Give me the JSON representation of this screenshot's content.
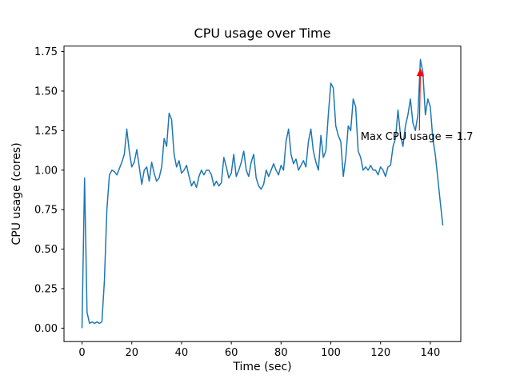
{
  "chart_data": {
    "type": "line",
    "title": "CPU usage over Time",
    "xlabel": "Time (sec)",
    "ylabel": "CPU usage (cores)",
    "line_color": "#1f77b4",
    "grid": false,
    "legend": "none",
    "xlim": [
      -7.25,
      152.25
    ],
    "ylim": [
      -0.085,
      1.785
    ],
    "xticks": [
      0,
      20,
      40,
      60,
      80,
      100,
      120,
      140
    ],
    "xticklabels": [
      "0",
      "20",
      "40",
      "60",
      "80",
      "100",
      "120",
      "140"
    ],
    "yticks": [
      0.0,
      0.25,
      0.5,
      0.75,
      1.0,
      1.25,
      1.5,
      1.75
    ],
    "yticklabels": [
      "0.00",
      "0.25",
      "0.50",
      "0.75",
      "1.00",
      "1.25",
      "1.50",
      "1.75"
    ],
    "x": [
      0,
      1,
      2,
      3,
      4,
      5,
      6,
      7,
      8,
      9,
      10,
      11,
      12,
      13,
      14,
      15,
      16,
      17,
      18,
      19,
      20,
      21,
      22,
      23,
      24,
      25,
      26,
      27,
      28,
      29,
      30,
      31,
      32,
      33,
      34,
      35,
      36,
      37,
      38,
      39,
      40,
      41,
      42,
      43,
      44,
      45,
      46,
      47,
      48,
      49,
      50,
      51,
      52,
      53,
      54,
      55,
      56,
      57,
      58,
      59,
      60,
      61,
      62,
      63,
      64,
      65,
      66,
      67,
      68,
      69,
      70,
      71,
      72,
      73,
      74,
      75,
      76,
      77,
      78,
      79,
      80,
      81,
      82,
      83,
      84,
      85,
      86,
      87,
      88,
      89,
      90,
      91,
      92,
      93,
      94,
      95,
      96,
      97,
      98,
      99,
      100,
      101,
      102,
      103,
      104,
      105,
      106,
      107,
      108,
      109,
      110,
      111,
      112,
      113,
      114,
      115,
      116,
      117,
      118,
      119,
      120,
      121,
      122,
      123,
      124,
      125,
      126,
      127,
      128,
      129,
      130,
      131,
      132,
      133,
      134,
      135,
      136,
      137,
      138,
      139,
      140,
      141,
      142,
      143,
      144,
      145
    ],
    "y": [
      0.0,
      0.95,
      0.1,
      0.03,
      0.04,
      0.03,
      0.04,
      0.03,
      0.04,
      0.3,
      0.75,
      0.97,
      1.0,
      0.99,
      0.97,
      1.01,
      1.05,
      1.1,
      1.26,
      1.12,
      1.02,
      1.05,
      1.13,
      1.02,
      0.91,
      1.0,
      1.02,
      0.93,
      1.05,
      0.98,
      0.93,
      0.95,
      1.02,
      1.2,
      1.15,
      1.36,
      1.32,
      1.1,
      1.02,
      1.06,
      0.98,
      1.0,
      1.03,
      0.96,
      0.9,
      0.93,
      0.89,
      0.96,
      1.0,
      0.97,
      1.0,
      1.0,
      0.97,
      0.9,
      0.93,
      0.9,
      0.92,
      1.08,
      1.02,
      0.95,
      0.98,
      1.1,
      0.96,
      1.0,
      1.05,
      1.12,
      1.0,
      0.96,
      1.05,
      1.1,
      0.95,
      0.9,
      0.88,
      0.91,
      1.0,
      0.96,
      1.0,
      1.04,
      1.0,
      0.97,
      1.03,
      1.0,
      1.18,
      1.26,
      1.1,
      1.04,
      1.07,
      1.0,
      1.03,
      1.06,
      1.02,
      1.18,
      1.26,
      1.12,
      1.05,
      1.0,
      1.22,
      1.08,
      1.12,
      1.35,
      1.55,
      1.52,
      1.28,
      1.22,
      1.18,
      0.96,
      1.08,
      1.28,
      1.25,
      1.45,
      1.4,
      1.12,
      1.08,
      1.0,
      1.02,
      1.0,
      1.03,
      1.0,
      1.0,
      0.97,
      1.02,
      1.0,
      0.96,
      1.02,
      1.03,
      1.15,
      1.2,
      1.38,
      1.22,
      1.15,
      1.28,
      1.35,
      1.45,
      1.3,
      1.25,
      1.35,
      1.7,
      1.62,
      1.35,
      1.45,
      1.4,
      1.2,
      1.1,
      0.95,
      0.8,
      0.65
    ],
    "max_value": 1.7,
    "annotation": {
      "text": "Max CPU usage = 1.7",
      "color": "#ff0000",
      "point": [
        136,
        1.7
      ],
      "text_pos": [
        112,
        1.21
      ],
      "arrow_start": [
        135.6,
        1.25
      ],
      "arrow_end": [
        136,
        1.64
      ]
    }
  }
}
